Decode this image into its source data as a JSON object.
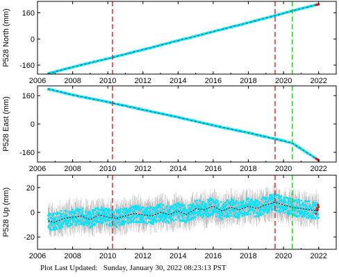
{
  "chart_data": [
    {
      "type": "scatter",
      "ylabel": "P528 North (mm)",
      "xlim": [
        2006,
        2023
      ],
      "ylim": [
        -215,
        230
      ],
      "xticks": [
        2006,
        2008,
        2010,
        2012,
        2014,
        2016,
        2018,
        2020,
        2022
      ],
      "yticks": [
        -160,
        0,
        160
      ],
      "series": [
        {
          "x": [
            2006.6,
            2008,
            2010,
            2012,
            2014,
            2016,
            2018,
            2019.6,
            2020.5,
            2022.0
          ],
          "y": [
            -212,
            -172,
            -120,
            -66,
            -10,
            45,
            100,
            145,
            172,
            212
          ],
          "color": "#00e5ff"
        }
      ],
      "event_lines": [
        {
          "x": 2010.27,
          "color": "#e8262a"
        },
        {
          "x": 2019.52,
          "color": "#e8262a"
        },
        {
          "x": 2020.5,
          "color": "#1ed421"
        }
      ]
    },
    {
      "type": "scatter",
      "ylabel": "P528 East (mm)",
      "xlim": [
        2006,
        2023
      ],
      "ylim": [
        -215,
        215
      ],
      "xticks": [
        2006,
        2008,
        2010,
        2012,
        2014,
        2016,
        2018,
        2020,
        2022
      ],
      "yticks": [
        -160,
        0,
        160
      ],
      "series": [
        {
          "x": [
            2006.6,
            2008,
            2010,
            2012,
            2014,
            2016,
            2018,
            2019.6,
            2020.5,
            2022.0
          ],
          "y": [
            198,
            164,
            124,
            80,
            38,
            -8,
            -50,
            -86,
            -108,
            -205
          ],
          "color": "#00e5ff"
        }
      ],
      "event_lines": [
        {
          "x": 2010.27,
          "color": "#e8262a"
        },
        {
          "x": 2019.52,
          "color": "#e8262a"
        },
        {
          "x": 2020.5,
          "color": "#1ed421"
        }
      ]
    },
    {
      "type": "scatter",
      "ylabel": "P528 Up (mm)",
      "xlim": [
        2006,
        2023
      ],
      "ylim": [
        -30,
        30
      ],
      "xticks": [
        2006,
        2008,
        2010,
        2012,
        2014,
        2016,
        2018,
        2020,
        2022
      ],
      "yticks": [
        -20,
        0,
        20
      ],
      "series": [
        {
          "x": [
            2006.6,
            2007.0,
            2007.5,
            2008.0,
            2008.5,
            2009.0,
            2009.5,
            2010.0,
            2010.5,
            2011.0,
            2011.5,
            2012.0,
            2012.5,
            2013.0,
            2013.5,
            2014.0,
            2014.5,
            2015.0,
            2015.5,
            2016.0,
            2016.5,
            2017.0,
            2017.5,
            2018.0,
            2018.5,
            2019.0,
            2019.5,
            2020.0,
            2020.5,
            2021.0,
            2021.5,
            2022.0
          ],
          "y": [
            -7,
            -8,
            -5,
            -4,
            -3,
            -6,
            -2,
            -4,
            -5,
            -3,
            -1,
            -2,
            -3,
            0,
            -2,
            1,
            -2,
            3,
            2,
            5,
            1,
            4,
            2,
            5,
            3,
            6,
            8,
            6,
            4,
            3,
            2,
            1
          ],
          "color": "#00e5ff"
        }
      ],
      "event_lines": [
        {
          "x": 2010.27,
          "color": "#e8262a"
        },
        {
          "x": 2019.52,
          "color": "#e8262a"
        },
        {
          "x": 2020.5,
          "color": "#1ed421"
        }
      ]
    }
  ],
  "footer": {
    "label": "Plot Last Updated:",
    "timestamp": "Sunday, January 30, 2022 08:23:13 PST"
  }
}
